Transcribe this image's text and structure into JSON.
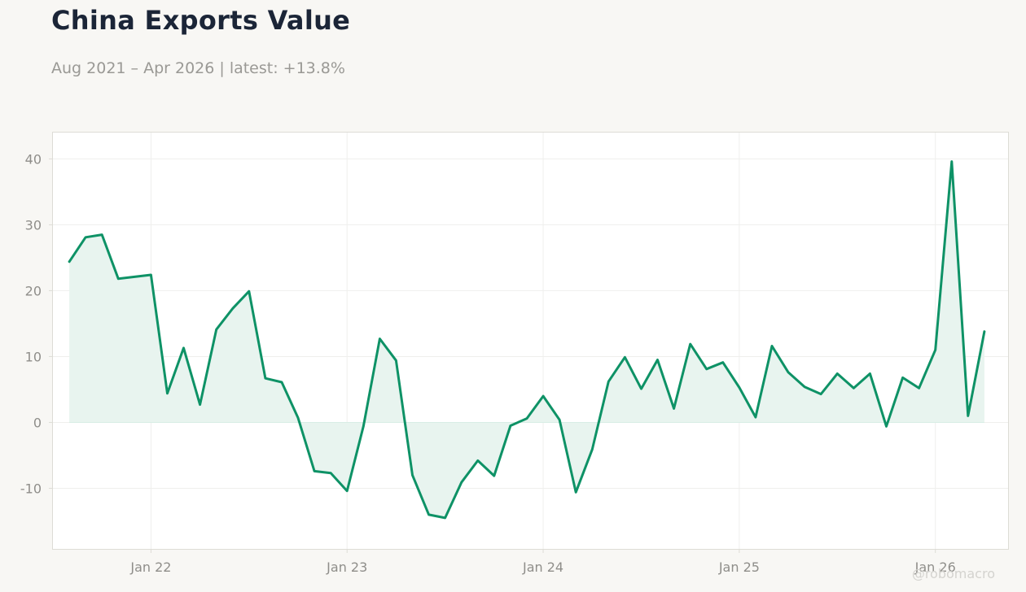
{
  "header": {
    "title": "China Exports Value",
    "subtitle": "Aug 2021 – Apr 2026 | latest: +13.8%"
  },
  "watermark": "@robomacro",
  "colors": {
    "line": "#0e9266",
    "fill": "#e8f4ef",
    "grid": "#efefed",
    "frame": "#dddcd6"
  },
  "chart_data": {
    "type": "area",
    "title": "China Exports Value",
    "subtitle": "Aug 2021 – Apr 2026 | latest: +13.8%",
    "xlabel": "",
    "ylabel": "",
    "ylim": [
      -19.2,
      44
    ],
    "yticks": [
      40,
      30,
      20,
      10,
      0,
      -10
    ],
    "ytick_labels": [
      "40",
      "30",
      "20",
      "10",
      "0",
      "-10"
    ],
    "xticks": [
      "2022-01",
      "2023-01",
      "2024-01",
      "2025-01",
      "2026-01"
    ],
    "xtick_labels": [
      "Jan 22",
      "Jan 23",
      "Jan 24",
      "Jan 25",
      "Jan 26"
    ],
    "grid": true,
    "legend": "none",
    "series": [
      {
        "x": [
          "2021-08",
          "2021-09",
          "2021-10",
          "2021-11",
          "2021-12",
          "2022-01",
          "2022-02",
          "2022-03",
          "2022-04",
          "2022-05",
          "2022-06",
          "2022-07",
          "2022-08",
          "2022-09",
          "2022-10",
          "2022-11",
          "2022-12",
          "2023-01",
          "2023-02",
          "2023-03",
          "2023-04",
          "2023-05",
          "2023-06",
          "2023-07",
          "2023-08",
          "2023-09",
          "2023-10",
          "2023-11",
          "2023-12",
          "2024-01",
          "2024-02",
          "2024-03",
          "2024-04",
          "2024-05",
          "2024-06",
          "2024-07",
          "2024-08",
          "2024-09",
          "2024-10",
          "2024-11",
          "2024-12",
          "2025-01",
          "2025-02",
          "2025-03",
          "2025-04",
          "2025-05",
          "2025-06",
          "2025-07",
          "2025-08",
          "2025-09",
          "2025-10",
          "2025-11",
          "2025-12",
          "2026-01",
          "2026-02",
          "2026-03",
          "2026-04"
        ],
        "values": [
          24.4,
          28.1,
          28.5,
          21.8,
          22.1,
          22.4,
          4.4,
          11.3,
          2.7,
          14.1,
          17.3,
          19.9,
          6.7,
          6.1,
          0.7,
          -7.4,
          -7.7,
          -10.4,
          -0.6,
          12.7,
          9.4,
          -8.0,
          -14.0,
          -14.5,
          -9.1,
          -5.8,
          -8.1,
          -0.5,
          0.6,
          4.0,
          0.4,
          -10.6,
          -4.1,
          6.2,
          9.9,
          5.1,
          9.5,
          2.1,
          11.9,
          8.1,
          9.1,
          5.3,
          0.8,
          11.6,
          7.6,
          5.4,
          4.3,
          7.4,
          5.2,
          7.4,
          -0.6,
          6.8,
          5.2,
          11.0,
          39.6,
          1.0,
          13.8
        ]
      }
    ]
  }
}
